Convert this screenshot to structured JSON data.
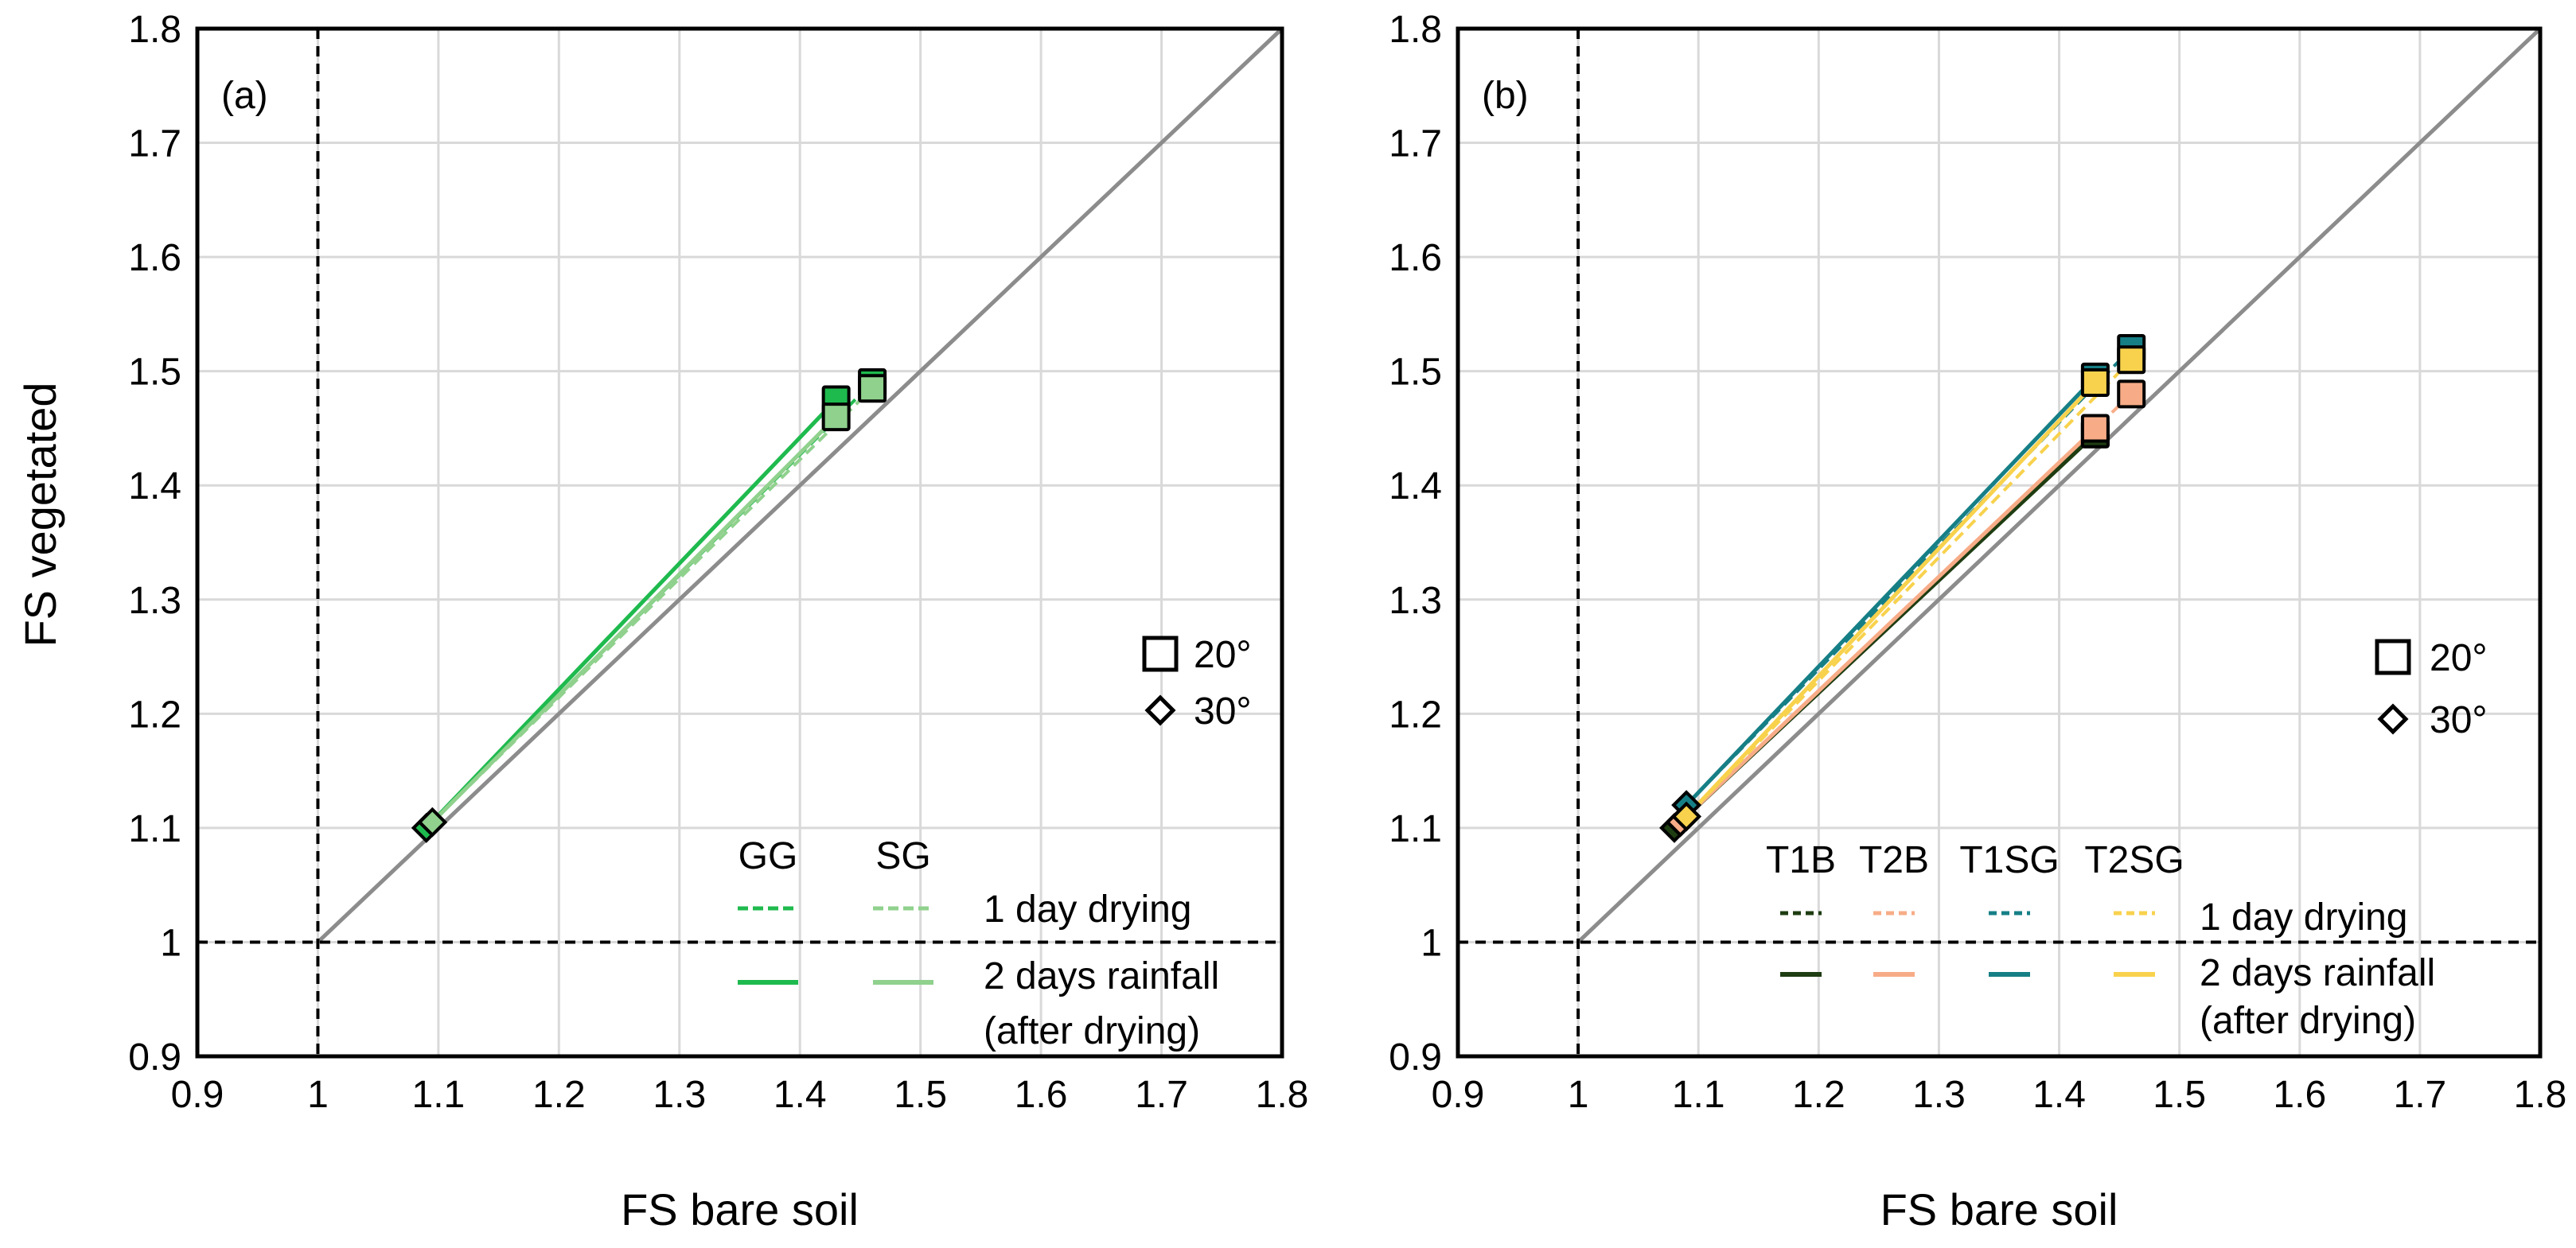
{
  "colors": {
    "gg": "#1fba4e",
    "sg": "#8fd18d",
    "t1b": "#1e3d12",
    "t2b": "#f7ac87",
    "t1sg": "#167f86",
    "t2sg": "#f8d24d",
    "identity": "#8c8c8c",
    "grid": "#d9d9d9",
    "reference": "#000000"
  },
  "chart_data": [
    {
      "type": "scatter",
      "panel_label": "(a)",
      "xlabel": "FS bare soil",
      "ylabel": "FS vegetated",
      "xlim": [
        0.9,
        1.8
      ],
      "ylim": [
        0.9,
        1.8
      ],
      "x_tick_labels": [
        "0.9",
        "1",
        "1.1",
        "1.2",
        "1.3",
        "1.4",
        "1.5",
        "1.6",
        "1.7",
        "1.8"
      ],
      "y_tick_labels": [
        "0.9",
        "1",
        "1.1",
        "1.2",
        "1.3",
        "1.4",
        "1.5",
        "1.6",
        "1.7",
        "1.8"
      ],
      "grid": true,
      "identity_line": true,
      "reference_lines": {
        "x": 1,
        "y": 1
      },
      "marker_legend": [
        {
          "marker": "square",
          "label": "20°"
        },
        {
          "marker": "diamond",
          "label": "30°"
        }
      ],
      "series_legend": {
        "groups": [
          "GG",
          "SG"
        ],
        "rows": [
          "1 day drying",
          "2 days rainfall",
          "(after drying)"
        ]
      },
      "series": [
        {
          "name": "GG 1 day drying",
          "color_key": "gg",
          "style": "dashed",
          "points": [
            {
              "marker": "diamond",
              "x": 1.09,
              "y": 1.1
            },
            {
              "marker": "square",
              "x": 1.46,
              "y": 1.49
            }
          ]
        },
        {
          "name": "GG 2 days rainfall (after drying)",
          "color_key": "gg",
          "style": "solid",
          "points": [
            {
              "marker": "diamond",
              "x": 1.09,
              "y": 1.1
            },
            {
              "marker": "square",
              "x": 1.43,
              "y": 1.475
            }
          ]
        },
        {
          "name": "SG 1 day drying",
          "color_key": "sg",
          "style": "dashed",
          "points": [
            {
              "marker": "diamond",
              "x": 1.095,
              "y": 1.105
            },
            {
              "marker": "square",
              "x": 1.46,
              "y": 1.485
            }
          ]
        },
        {
          "name": "SG 2 days rainfall (after drying)",
          "color_key": "sg",
          "style": "solid",
          "points": [
            {
              "marker": "diamond",
              "x": 1.095,
              "y": 1.105
            },
            {
              "marker": "square",
              "x": 1.43,
              "y": 1.46
            }
          ]
        }
      ]
    },
    {
      "type": "scatter",
      "panel_label": "(b)",
      "xlabel": "FS bare soil",
      "ylabel": "",
      "xlim": [
        0.9,
        1.8
      ],
      "ylim": [
        0.9,
        1.8
      ],
      "x_tick_labels": [
        "0.9",
        "1",
        "1.1",
        "1.2",
        "1.3",
        "1.4",
        "1.5",
        "1.6",
        "1.7",
        "1.8"
      ],
      "y_tick_labels": [
        "0.9",
        "1",
        "1.1",
        "1.2",
        "1.3",
        "1.4",
        "1.5",
        "1.6",
        "1.7",
        "1.8"
      ],
      "grid": true,
      "identity_line": true,
      "reference_lines": {
        "x": 1,
        "y": 1
      },
      "marker_legend": [
        {
          "marker": "square",
          "label": "20°"
        },
        {
          "marker": "diamond",
          "label": "30°"
        }
      ],
      "series_legend": {
        "groups": [
          "T1B",
          "T2B",
          "T1SG",
          "T2SG"
        ],
        "rows": [
          "1 day drying",
          "2 days rainfall",
          "(after drying)"
        ]
      },
      "series": [
        {
          "name": "T1B 1 day drying",
          "color_key": "t1b",
          "style": "dashed",
          "points": [
            {
              "marker": "diamond",
              "x": 1.08,
              "y": 1.1
            },
            {
              "marker": "square",
              "x": 1.43,
              "y": 1.445
            }
          ]
        },
        {
          "name": "T1B 2 days rainfall (after drying)",
          "color_key": "t1b",
          "style": "solid",
          "points": [
            {
              "marker": "diamond",
              "x": 1.08,
              "y": 1.1
            },
            {
              "marker": "square",
              "x": 1.43,
              "y": 1.445
            }
          ]
        },
        {
          "name": "T2B 1 day drying",
          "color_key": "t2b",
          "style": "dashed",
          "points": [
            {
              "marker": "diamond",
              "x": 1.085,
              "y": 1.105
            },
            {
              "marker": "square",
              "x": 1.46,
              "y": 1.48
            }
          ]
        },
        {
          "name": "T2B 2 days rainfall (after drying)",
          "color_key": "t2b",
          "style": "solid",
          "points": [
            {
              "marker": "diamond",
              "x": 1.085,
              "y": 1.105
            },
            {
              "marker": "square",
              "x": 1.43,
              "y": 1.45
            }
          ]
        },
        {
          "name": "T1SG 1 day drying",
          "color_key": "t1sg",
          "style": "dashed",
          "points": [
            {
              "marker": "diamond",
              "x": 1.09,
              "y": 1.12
            },
            {
              "marker": "square",
              "x": 1.46,
              "y": 1.52
            }
          ]
        },
        {
          "name": "T1SG 2 days rainfall (after drying)",
          "color_key": "t1sg",
          "style": "solid",
          "points": [
            {
              "marker": "diamond",
              "x": 1.09,
              "y": 1.12
            },
            {
              "marker": "square",
              "x": 1.43,
              "y": 1.495
            }
          ]
        },
        {
          "name": "T2SG 1 day drying",
          "color_key": "t2sg",
          "style": "dashed",
          "points": [
            {
              "marker": "diamond",
              "x": 1.09,
              "y": 1.11
            },
            {
              "marker": "square",
              "x": 1.46,
              "y": 1.51
            }
          ]
        },
        {
          "name": "T2SG 2 days rainfall (after drying)",
          "color_key": "t2sg",
          "style": "solid",
          "points": [
            {
              "marker": "diamond",
              "x": 1.09,
              "y": 1.11
            },
            {
              "marker": "square",
              "x": 1.43,
              "y": 1.49
            }
          ]
        }
      ]
    }
  ]
}
